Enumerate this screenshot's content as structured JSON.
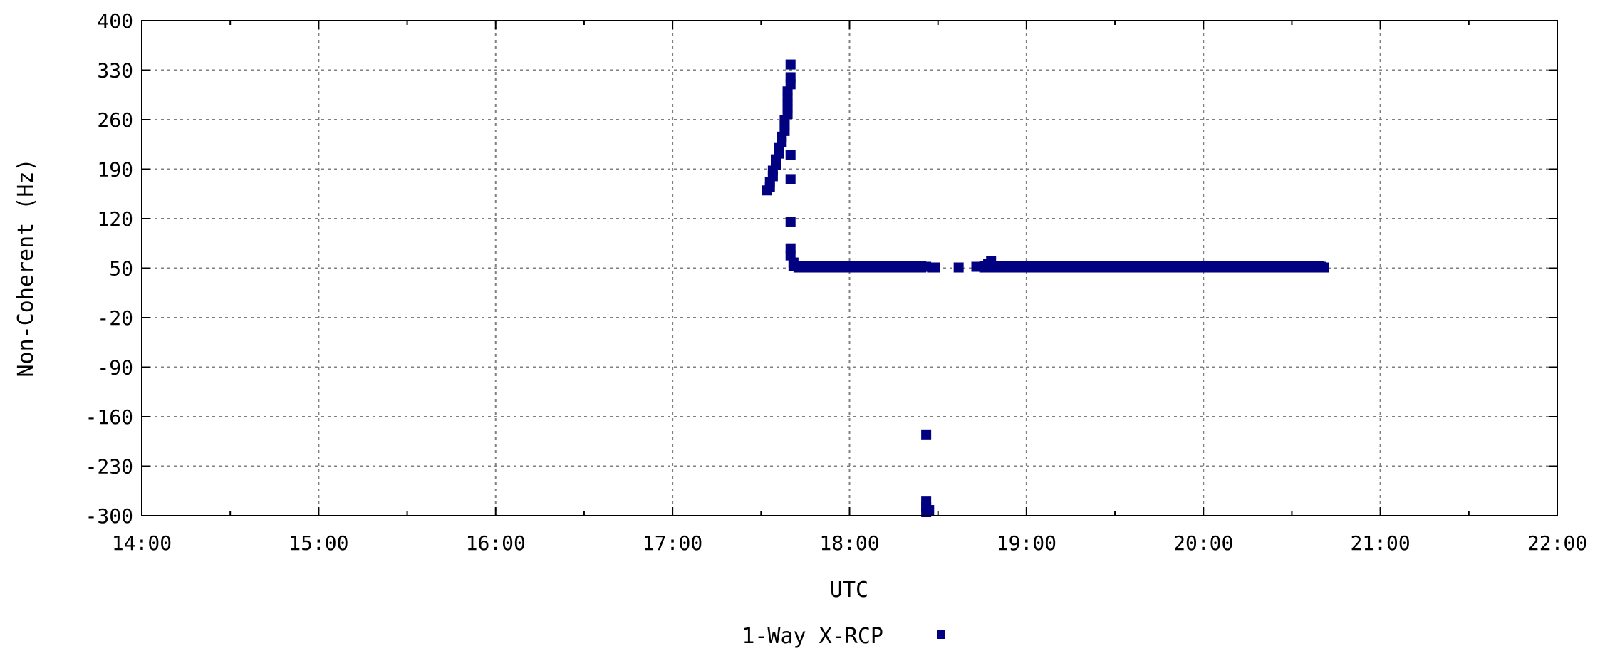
{
  "chart_data": {
    "type": "scatter",
    "title": "",
    "xlabel": "UTC",
    "ylabel": "Non-Coherent (Hz)",
    "x_ticks": [
      "14:00",
      "15:00",
      "16:00",
      "17:00",
      "18:00",
      "19:00",
      "20:00",
      "21:00",
      "22:00"
    ],
    "y_ticks": [
      400,
      330,
      260,
      190,
      120,
      50,
      -20,
      -90,
      -160,
      -230,
      -300
    ],
    "xlim": [
      "14:00",
      "22:00"
    ],
    "ylim": [
      -300,
      400
    ],
    "grid": true,
    "legend_position": "bottom-center",
    "series": [
      {
        "name": "1-Way X-RCP",
        "color": "#000080",
        "marker": "square",
        "points": [
          [
            "17:32",
            160
          ],
          [
            "17:33",
            165
          ],
          [
            "17:33",
            172
          ],
          [
            "17:34",
            180
          ],
          [
            "17:34",
            188
          ],
          [
            "17:35",
            196
          ],
          [
            "17:35",
            204
          ],
          [
            "17:36",
            212
          ],
          [
            "17:36",
            220
          ],
          [
            "17:37",
            228
          ],
          [
            "17:37",
            236
          ],
          [
            "17:38",
            244
          ],
          [
            "17:38",
            252
          ],
          [
            "17:38",
            260
          ],
          [
            "17:39",
            268
          ],
          [
            "17:39",
            276
          ],
          [
            "17:39",
            284
          ],
          [
            "17:39",
            292
          ],
          [
            "17:39",
            300
          ],
          [
            "17:40",
            310
          ],
          [
            "17:40",
            320
          ],
          [
            "17:40",
            338
          ],
          [
            "17:40",
            210
          ],
          [
            "17:40",
            176
          ],
          [
            "17:40",
            115
          ],
          [
            "17:40",
            78
          ],
          [
            "17:40",
            68
          ],
          [
            "17:41",
            58
          ],
          [
            "17:41",
            53
          ],
          [
            "17:45",
            52
          ],
          [
            "17:50",
            52
          ],
          [
            "17:55",
            52
          ],
          [
            "18:00",
            52
          ],
          [
            "18:05",
            52
          ],
          [
            "18:10",
            52
          ],
          [
            "18:15",
            52
          ],
          [
            "18:20",
            52
          ],
          [
            "18:25",
            52
          ],
          [
            "18:26",
            -186
          ],
          [
            "18:26",
            -280
          ],
          [
            "18:26",
            -288
          ],
          [
            "18:26",
            -295
          ],
          [
            "18:27",
            -292
          ],
          [
            "18:26",
            52
          ],
          [
            "18:28",
            51
          ],
          [
            "18:29",
            51
          ],
          [
            "18:37",
            51
          ],
          [
            "18:43",
            52
          ],
          [
            "18:45",
            52
          ],
          [
            "18:47",
            56
          ],
          [
            "18:48",
            60
          ],
          [
            "18:49",
            53
          ],
          [
            "18:55",
            52
          ],
          [
            "19:00",
            52
          ],
          [
            "19:10",
            52
          ],
          [
            "19:20",
            52
          ],
          [
            "19:30",
            52
          ],
          [
            "19:40",
            52
          ],
          [
            "19:50",
            52
          ],
          [
            "20:00",
            52
          ],
          [
            "20:10",
            52
          ],
          [
            "20:20",
            52
          ],
          [
            "20:30",
            52
          ],
          [
            "20:40",
            52
          ],
          [
            "20:41",
            51
          ]
        ],
        "segments": [
          [
            "17:41",
            "18:26",
            52
          ],
          [
            "18:44",
            "20:41",
            52
          ]
        ]
      }
    ]
  }
}
